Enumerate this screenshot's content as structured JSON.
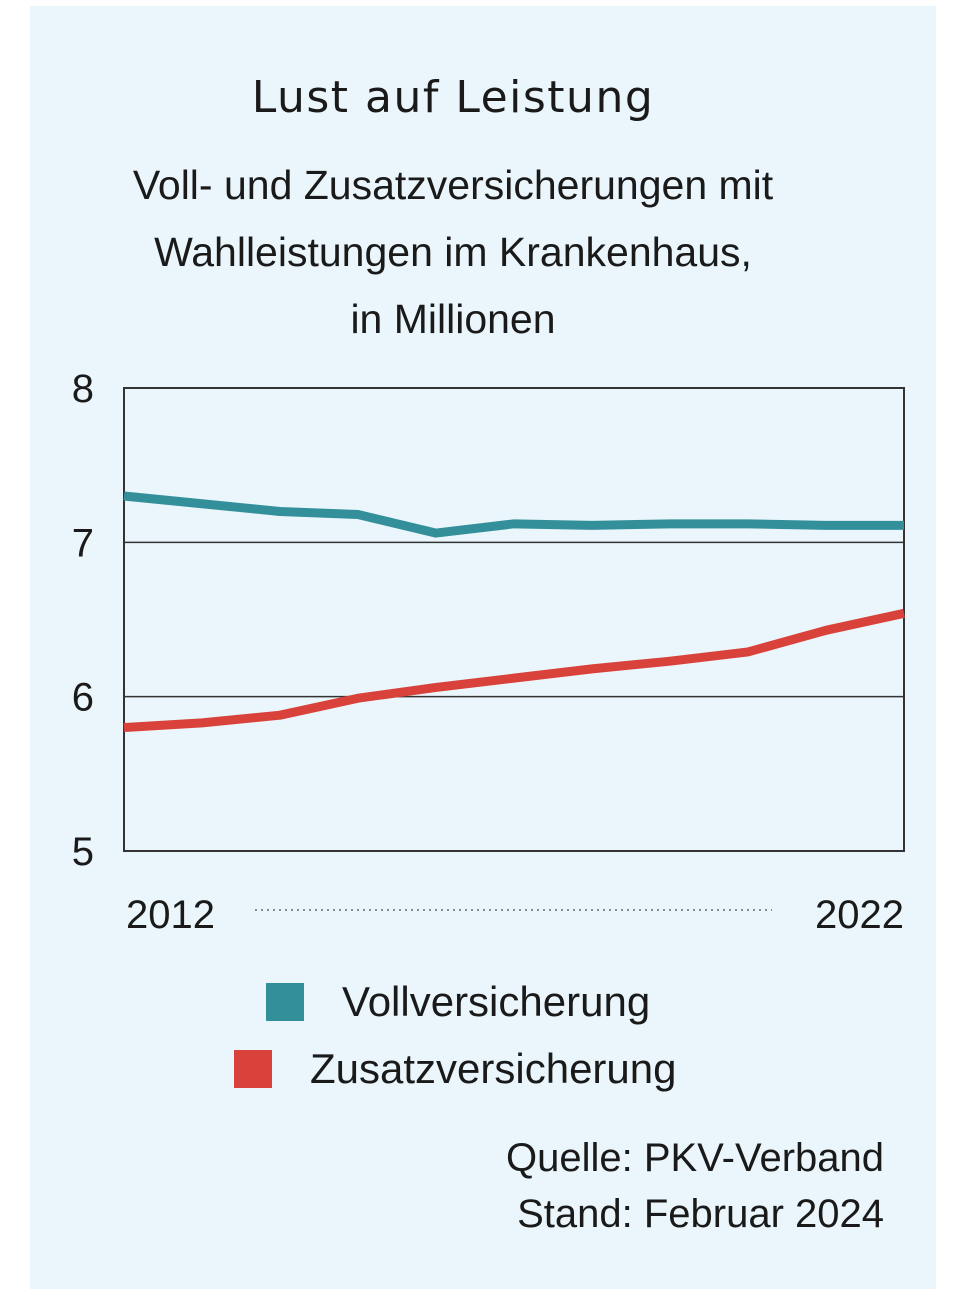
{
  "chart_data": {
    "type": "line",
    "title": "Lust auf Leistung",
    "subtitle_lines": [
      "Voll- und Zusatzversicherungen mit",
      "Wahlleistungen im Krankenhaus,",
      "in Millionen"
    ],
    "x": [
      2012,
      2013,
      2014,
      2015,
      2016,
      2017,
      2018,
      2019,
      2020,
      2021,
      2022
    ],
    "x_tick_labels": [
      "2012",
      "2022"
    ],
    "ylim": [
      5,
      8
    ],
    "y_ticks": [
      5,
      6,
      7,
      8
    ],
    "gridlines_y": [
      6,
      7
    ],
    "series": [
      {
        "name": "Vollversicherung",
        "color": "#338f9a",
        "values": [
          7.3,
          7.25,
          7.2,
          7.18,
          7.06,
          7.12,
          7.11,
          7.12,
          7.12,
          7.11,
          7.11
        ]
      },
      {
        "name": "Zusatzversicherung",
        "color": "#d9423a",
        "values": [
          5.8,
          5.83,
          5.88,
          5.99,
          6.06,
          6.12,
          6.18,
          6.23,
          6.29,
          6.43,
          6.54
        ]
      }
    ],
    "legend_position": "bottom-center",
    "source_lines": [
      "Quelle: PKV-Verband",
      "Stand: Februar 2024"
    ]
  }
}
